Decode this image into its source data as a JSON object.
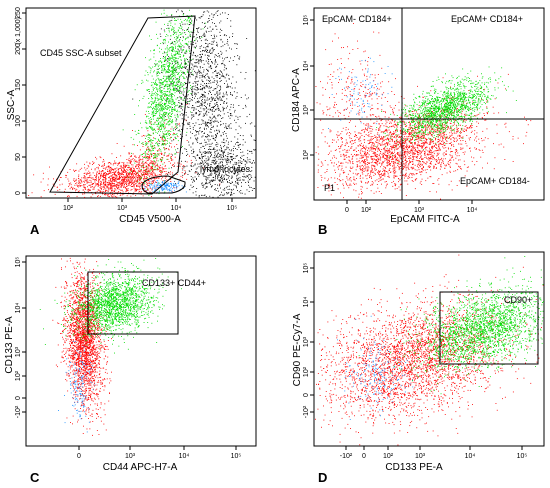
{
  "chart_data": [
    {
      "type": "scatter",
      "panel_letter": "A",
      "xlabel": "CD45 V500-A",
      "ylabel": "SSC-A",
      "y_multiplier_label": "(x 1,000)",
      "x_scale": "log",
      "x_ticks": [
        "10²",
        "10³",
        "10⁴",
        "10⁵"
      ],
      "y_ticks": [
        "0",
        "50",
        "100",
        "150",
        "200",
        "250"
      ],
      "gates": [
        {
          "label": "CD45 SSC-A subset",
          "color": "#000000"
        },
        {
          "label": "lymphocytes",
          "color": "#000000"
        }
      ],
      "series": [
        {
          "color": "#000000",
          "population": "events outside gates"
        },
        {
          "color": "#ff0000",
          "population": "CD45 SSC-A subset"
        },
        {
          "color": "#00dd00",
          "population": "CD45 SSC-A subset"
        },
        {
          "color": "#1e90ff",
          "population": "lymphocytes"
        }
      ]
    },
    {
      "type": "scatter",
      "panel_letter": "B",
      "xlabel": "EpCAM FITC-A",
      "ylabel": "CD184 APC-A",
      "x_scale": "log",
      "y_scale": "log",
      "x_ticks": [
        "0",
        "10²",
        "10³",
        "10⁴"
      ],
      "y_ticks": [
        "10²",
        "10³",
        "10⁴",
        "10⁵"
      ],
      "quadrants": [
        {
          "label": "EpCAM- CD184+",
          "position": "top-left"
        },
        {
          "label": "EpCAM+ CD184+",
          "position": "top-right"
        },
        {
          "label": "EpCAM+ CD184-",
          "position": "bottom-right"
        },
        {
          "label": "P1",
          "position": "bottom-left"
        }
      ],
      "series": [
        {
          "color": "#ff0000"
        },
        {
          "color": "#00dd00"
        },
        {
          "color": "#1e90ff"
        }
      ]
    },
    {
      "type": "scatter",
      "panel_letter": "C",
      "xlabel": "CD44 APC-H7-A",
      "ylabel": "CD133 PE-A",
      "x_scale": "log",
      "y_scale": "log",
      "x_ticks": [
        "0",
        "10³",
        "10⁴",
        "10⁵"
      ],
      "y_ticks": [
        "-10²",
        "0",
        "10²",
        "10³",
        "10⁴",
        "10⁵"
      ],
      "gates": [
        {
          "label": "CD133+ CD44+",
          "color": "#000000"
        }
      ],
      "series": [
        {
          "color": "#ff0000"
        },
        {
          "color": "#00dd00"
        },
        {
          "color": "#1e90ff"
        }
      ]
    },
    {
      "type": "scatter",
      "panel_letter": "D",
      "xlabel": "CD133 PE-A",
      "ylabel": "CD90 PE-Cy7-A",
      "x_scale": "log",
      "y_scale": "log",
      "x_ticks": [
        "-10²",
        "0",
        "10²",
        "10³",
        "10⁴",
        "10⁵"
      ],
      "y_ticks": [
        "-10²",
        "0",
        "10²",
        "10³",
        "10⁴",
        "10⁵"
      ],
      "gates": [
        {
          "label": "CD90+",
          "color": "#000000"
        }
      ],
      "series": [
        {
          "color": "#ff0000"
        },
        {
          "color": "#00dd00"
        },
        {
          "color": "#1e90ff"
        }
      ]
    }
  ]
}
